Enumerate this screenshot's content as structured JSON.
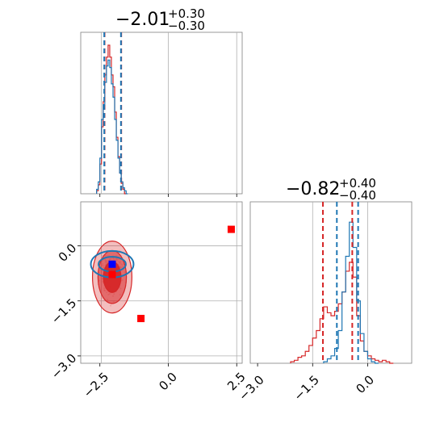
{
  "colors": {
    "red": "#d62728",
    "blue": "#1f77b4",
    "marker_red": "#ff0000",
    "marker_blue": "#0000ff",
    "grid": "#b0b0b0",
    "frame": "#808080"
  },
  "chart_data": [
    {
      "type": "histogram",
      "panel": "param-1-marginal",
      "title": {
        "value": "−2.01",
        "upper": "+0.30",
        "lower": "−0.30"
      },
      "xlim": [
        -3.2,
        2.7
      ],
      "x_ticks": [
        -2.5,
        0.0,
        2.5
      ],
      "x_tick_labels": [
        "",
        "",
        ""
      ],
      "grid": true,
      "vlines": [
        {
          "color": "red",
          "x": -2.33
        },
        {
          "color": "red",
          "x": -1.72
        },
        {
          "color": "blue",
          "x": -2.34
        },
        {
          "color": "blue",
          "x": -1.73
        }
      ],
      "reference_lines": [
        -2.45,
        0.0,
        2.5
      ],
      "series": [
        {
          "color": "red",
          "bins": [
            [
              -2.62,
              0.02
            ],
            [
              -2.56,
              0.06
            ],
            [
              -2.5,
              0.2
            ],
            [
              -2.44,
              0.45
            ],
            [
              -2.38,
              0.62
            ],
            [
              -2.32,
              0.8
            ],
            [
              -2.26,
              0.92
            ],
            [
              -2.2,
              1.0
            ],
            [
              -2.14,
              0.92
            ],
            [
              -2.08,
              0.8
            ],
            [
              -2.02,
              0.72
            ],
            [
              -1.96,
              0.55
            ],
            [
              -1.9,
              0.38
            ],
            [
              -1.84,
              0.25
            ],
            [
              -1.78,
              0.14
            ],
            [
              -1.72,
              0.07
            ],
            [
              -1.66,
              0.03
            ],
            [
              -1.6,
              0.0
            ]
          ]
        },
        {
          "color": "blue",
          "bins": [
            [
              -2.62,
              0.03
            ],
            [
              -2.56,
              0.08
            ],
            [
              -2.5,
              0.24
            ],
            [
              -2.44,
              0.5
            ],
            [
              -2.38,
              0.6
            ],
            [
              -2.32,
              0.75
            ],
            [
              -2.26,
              0.86
            ],
            [
              -2.2,
              0.9
            ],
            [
              -2.14,
              0.85
            ],
            [
              -2.08,
              0.74
            ],
            [
              -2.02,
              0.65
            ],
            [
              -1.96,
              0.5
            ],
            [
              -1.9,
              0.36
            ],
            [
              -1.84,
              0.24
            ],
            [
              -1.78,
              0.14
            ],
            [
              -1.72,
              0.08
            ],
            [
              -1.66,
              0.04
            ],
            [
              -1.6,
              0.02
            ],
            [
              -1.54,
              0.0
            ]
          ]
        }
      ]
    },
    {
      "type": "contour",
      "panel": "joint",
      "xlim": [
        -3.2,
        2.7
      ],
      "ylim": [
        -3.2,
        1.2
      ],
      "x_ticks": [
        -2.5,
        0.0,
        2.5
      ],
      "x_tick_labels": [
        "−2.5",
        "0.0",
        "2.5"
      ],
      "y_ticks": [
        0.0,
        -1.5,
        -3.0
      ],
      "y_tick_labels": [
        "0.0",
        "−1.5",
        "−3.0"
      ],
      "grid": true,
      "reference_lines_x": [
        -2.45,
        0.0,
        2.5
      ],
      "reference_lines_y": [
        0.0,
        -1.5,
        -3.0
      ],
      "red_contours": [
        {
          "cx": -2.05,
          "cy": -0.85,
          "rx": 0.32,
          "ry": 0.42,
          "fill_opacity": 0.95
        },
        {
          "cx": -2.05,
          "cy": -0.85,
          "rx": 0.52,
          "ry": 0.72,
          "fill_opacity": 0.55
        },
        {
          "cx": -2.05,
          "cy": -0.85,
          "rx": 0.72,
          "ry": 0.98,
          "fill_opacity": 0.3
        }
      ],
      "blue_contours": [
        {
          "cx": -2.05,
          "cy": -0.5,
          "rx": 0.5,
          "ry": 0.2
        },
        {
          "cx": -2.05,
          "cy": -0.5,
          "rx": 0.78,
          "ry": 0.36
        }
      ],
      "markers": [
        {
          "color": "marker_red",
          "x": 2.3,
          "y": 0.45
        },
        {
          "color": "marker_red",
          "x": -1.0,
          "y": -1.98
        },
        {
          "color": "marker_red",
          "x": -2.05,
          "y": -0.78
        },
        {
          "color": "marker_blue",
          "x": -2.05,
          "y": -0.5
        }
      ]
    },
    {
      "type": "histogram",
      "panel": "param-2-marginal",
      "title": {
        "value": "−0.82",
        "upper": "+0.40",
        "lower": "−0.40"
      },
      "xlim": [
        -3.2,
        1.2
      ],
      "x_ticks": [
        -3.0,
        -1.5,
        0.0
      ],
      "x_tick_labels": [
        "−3.0",
        "−1.5",
        "0.0"
      ],
      "grid": true,
      "reference_lines": [
        -1.5,
        0.0
      ],
      "vlines": [
        {
          "color": "red",
          "x": -1.22
        },
        {
          "color": "red",
          "x": -0.42
        },
        {
          "color": "blue",
          "x": -0.84
        },
        {
          "color": "blue",
          "x": -0.26
        }
      ],
      "series": [
        {
          "color": "red",
          "bins": [
            [
              -2.1,
              0.01
            ],
            [
              -2.0,
              0.02
            ],
            [
              -1.9,
              0.04
            ],
            [
              -1.8,
              0.05
            ],
            [
              -1.7,
              0.08
            ],
            [
              -1.6,
              0.12
            ],
            [
              -1.5,
              0.17
            ],
            [
              -1.4,
              0.22
            ],
            [
              -1.3,
              0.3
            ],
            [
              -1.2,
              0.38
            ],
            [
              -1.1,
              0.34
            ],
            [
              -1.0,
              0.32
            ],
            [
              -0.9,
              0.35
            ],
            [
              -0.8,
              0.4
            ],
            [
              -0.7,
              0.48
            ],
            [
              -0.6,
              0.62
            ],
            [
              -0.5,
              0.68
            ],
            [
              -0.4,
              0.58
            ],
            [
              -0.3,
              0.32
            ],
            [
              -0.2,
              0.15
            ],
            [
              -0.1,
              0.08
            ],
            [
              0.0,
              0.05
            ],
            [
              0.1,
              0.03
            ],
            [
              0.2,
              0.02
            ],
            [
              0.3,
              0.01
            ],
            [
              0.4,
              0.02
            ],
            [
              0.5,
              0.01
            ],
            [
              0.6,
              0.0
            ]
          ]
        },
        {
          "color": "blue",
          "bins": [
            [
              -1.2,
              0.01
            ],
            [
              -1.1,
              0.03
            ],
            [
              -1.0,
              0.05
            ],
            [
              -0.9,
              0.1
            ],
            [
              -0.8,
              0.22
            ],
            [
              -0.7,
              0.48
            ],
            [
              -0.6,
              0.72
            ],
            [
              -0.5,
              0.95
            ],
            [
              -0.4,
              0.78
            ],
            [
              -0.3,
              0.42
            ],
            [
              -0.2,
              0.2
            ],
            [
              -0.1,
              0.08
            ],
            [
              0.0,
              0.03
            ],
            [
              0.1,
              0.01
            ],
            [
              0.2,
              0.0
            ]
          ]
        }
      ]
    }
  ]
}
